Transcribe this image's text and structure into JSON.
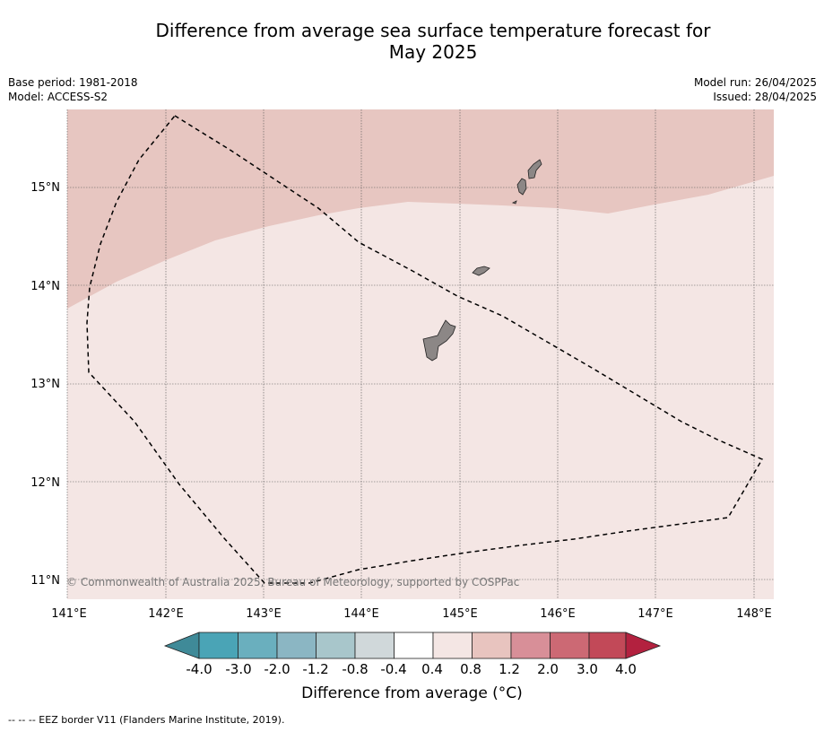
{
  "title": "Difference from average sea surface temperature forecast for May 2025",
  "title_line1": "Difference from average sea surface temperature forecast for",
  "title_line2": "May 2025",
  "base_period": "Base period: 1981-2018",
  "model": "Model: ACCESS-S2",
  "model_run": "Model run: 26/04/2025",
  "issued": "Issued: 28/04/2025",
  "copyright": "© Commonwealth of Australia 2025, Bureau of Meteorology, supported by COSPPac",
  "lon_labels": [
    "141°E",
    "142°E",
    "143°E",
    "144°E",
    "145°E",
    "146°E",
    "147°E",
    "148°E"
  ],
  "lat_labels": [
    "15°N",
    "14°N",
    "13°N",
    "12°N",
    "11°N"
  ],
  "colorbar": {
    "label": "Difference from average (°C)",
    "ticks": [
      "-4.0",
      "-3.0",
      "-2.0",
      "-1.2",
      "-0.8",
      "-0.4",
      "0.4",
      "0.8",
      "1.2",
      "2.0",
      "3.0",
      "4.0"
    ],
    "colors": [
      "#3f8a98",
      "#4aa4b6",
      "#6aafbe",
      "#8bb6c3",
      "#a8c6cb",
      "#d0d8da",
      "#ffffff",
      "#f4e6e4",
      "#e8c4bf",
      "#d88f98",
      "#cc6974",
      "#c24958",
      "#b3213f"
    ]
  },
  "map_colors": {
    "band_0_4_to_0_8": "#f4e6e4",
    "band_0_8_to_1_2": "#e7c6c1",
    "land": "#8c8786"
  },
  "footnote": "--  --  -- EEZ border V11 (Flanders Marine Institute, 2019)."
}
